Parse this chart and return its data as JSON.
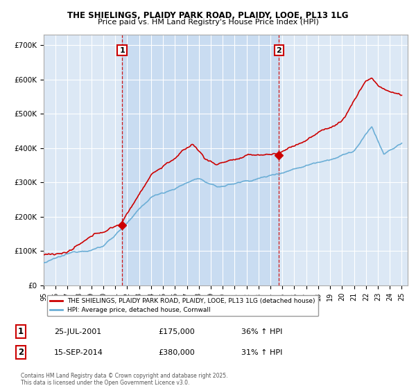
{
  "title_line1": "THE SHIELINGS, PLAIDY PARK ROAD, PLAIDY, LOOE, PL13 1LG",
  "title_line2": "Price paid vs. HM Land Registry's House Price Index (HPI)",
  "bg_color": "#dce8f5",
  "shade_color": "#c5daf0",
  "grid_color": "#ffffff",
  "sale1_date_num": 2001.57,
  "sale1_price": 175000,
  "sale2_date_num": 2014.71,
  "sale2_price": 380000,
  "legend_line1": "THE SHIELINGS, PLAIDY PARK ROAD, PLAIDY, LOOE, PL13 1LG (detached house)",
  "legend_line2": "HPI: Average price, detached house, Cornwall",
  "table_row1": [
    "1",
    "25-JUL-2001",
    "£175,000",
    "36% ↑ HPI"
  ],
  "table_row2": [
    "2",
    "15-SEP-2014",
    "£380,000",
    "31% ↑ HPI"
  ],
  "footnote": "Contains HM Land Registry data © Crown copyright and database right 2025.\nThis data is licensed under the Open Government Licence v3.0.",
  "hpi_color": "#6baed6",
  "price_color": "#cc0000",
  "dashed_line_color": "#cc0000",
  "ylim_min": 0,
  "ylim_max": 730000,
  "xmin": 1995.0,
  "xmax": 2025.5
}
